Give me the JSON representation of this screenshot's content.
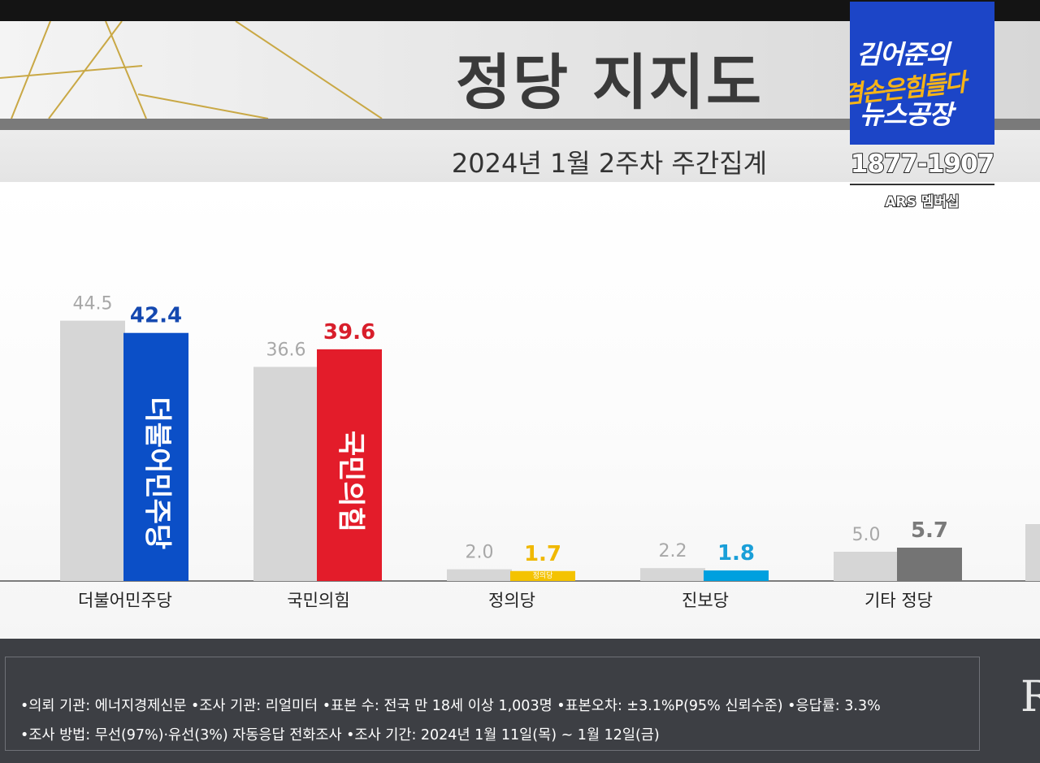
{
  "header": {
    "title": "정당 지지도",
    "subtitle": "2024년 1월 2주차 주간집계"
  },
  "logo": {
    "line1": "김어준의",
    "line2": "겸손은힘들다",
    "line3": "뉴스공장",
    "phone": "1877-1907",
    "ars": "ARS 멤버십"
  },
  "chart_data": {
    "type": "bar",
    "categories": [
      "더불어민주당",
      "국민의힘",
      "정의당",
      "진보당",
      "기타 정당"
    ],
    "series": [
      {
        "values": [
          44.5,
          36.6,
          2.0,
          2.2,
          5.0
        ],
        "labels": [
          "44.5",
          "36.6",
          "2.0",
          "2.2",
          "5.0"
        ]
      },
      {
        "values": [
          42.4,
          39.6,
          1.7,
          1.8,
          5.7
        ],
        "labels": [
          "42.4",
          "39.6",
          "1.7",
          "1.8",
          "5.7"
        ]
      }
    ],
    "bar_text": [
      "더불어민주당",
      "국민의힘",
      "정의당",
      "",
      ""
    ],
    "colors": {
      "previous": "#d6d6d6",
      "current": [
        "#0b4fc7",
        "#e31c2a",
        "#f4c300",
        "#00a0df",
        "#747474"
      ],
      "current_label": [
        "#1448b0",
        "#d81e2b",
        "#f0b800",
        "#1a9fd8",
        "#7a7a7a"
      ],
      "previous_label": "#a8a8a8"
    },
    "ylim": [
      0,
      56
    ],
    "grid": false,
    "legend": "none"
  },
  "footnote": {
    "line1": "•의뢰 기관: 에너지경제신문  •조사 기관: 리얼미터 •표본 수: 전국 만 18세 이상 1,003명 •표본오차: ±3.1%P(95% 신뢰수준) •응답률: 3.3%",
    "line2": "•조사 방법: 무선(97%)·유선(3%) 자동응답 전화조사 •조사 기간: 2024년 1월 11일(목) ~ 1월 12일(금)"
  },
  "edge_text": "R"
}
